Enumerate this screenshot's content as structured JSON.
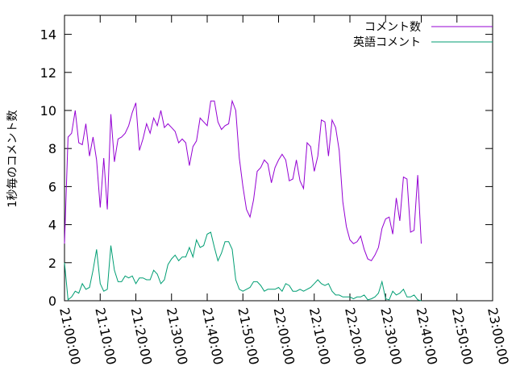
{
  "chart_data": {
    "type": "line",
    "ylabel": "1秒毎のコメント数",
    "xlabel": "",
    "ylim": [
      0,
      15
    ],
    "yticks": [
      0,
      2,
      4,
      6,
      8,
      10,
      12,
      14
    ],
    "xlim": [
      "21:00:00",
      "23:00:00"
    ],
    "xticks": [
      "21:00:00",
      "21:10:00",
      "21:20:00",
      "21:30:00",
      "21:40:00",
      "21:50:00",
      "22:00:00",
      "22:10:00",
      "22:20:00",
      "22:30:00",
      "22:40:00",
      "22:50:00",
      "23:00:00"
    ],
    "grid": false,
    "legend_position": "top-right",
    "x_interval_minutes": 1,
    "series": [
      {
        "name": "コメント数",
        "color": "#9400d3",
        "values": [
          3.0,
          8.6,
          8.8,
          10.0,
          8.3,
          8.2,
          9.3,
          7.6,
          8.6,
          7.4,
          4.9,
          7.5,
          4.8,
          9.8,
          7.3,
          8.5,
          8.6,
          8.8,
          9.2,
          9.9,
          10.4,
          7.9,
          8.5,
          9.3,
          8.8,
          9.6,
          9.2,
          10.0,
          9.1,
          9.3,
          9.1,
          8.9,
          8.3,
          8.5,
          8.3,
          7.1,
          8.1,
          8.4,
          9.6,
          9.4,
          9.2,
          10.5,
          10.5,
          9.4,
          9.0,
          9.2,
          9.3,
          10.5,
          10.0,
          7.5,
          6.0,
          4.8,
          4.4,
          5.3,
          6.8,
          7.0,
          7.4,
          7.2,
          6.2,
          7.0,
          7.4,
          7.7,
          7.4,
          6.3,
          6.4,
          7.4,
          6.3,
          5.9,
          8.3,
          8.1,
          6.8,
          7.6,
          9.5,
          9.4,
          7.6,
          9.5,
          9.1,
          7.9,
          5.2,
          3.9,
          3.2,
          3.0,
          3.1,
          3.4,
          2.7,
          2.2,
          2.1,
          2.4,
          2.8,
          3.8,
          4.3,
          4.4,
          3.5,
          5.4,
          4.2,
          6.5,
          6.4,
          3.6,
          3.7,
          6.6,
          3.0
        ]
      },
      {
        "name": "英語コメント",
        "color": "#009e73",
        "values": [
          2.0,
          0.05,
          0.2,
          0.5,
          0.4,
          0.9,
          0.6,
          0.7,
          1.6,
          2.7,
          0.9,
          0.5,
          0.6,
          2.9,
          1.6,
          1.0,
          1.0,
          1.3,
          1.2,
          1.3,
          0.9,
          1.2,
          1.2,
          1.1,
          1.1,
          1.6,
          1.4,
          0.9,
          1.1,
          1.9,
          2.2,
          2.4,
          2.1,
          2.3,
          2.3,
          2.8,
          2.3,
          3.2,
          2.8,
          2.9,
          3.5,
          3.6,
          2.8,
          2.1,
          2.5,
          3.1,
          3.1,
          2.7,
          1.1,
          0.6,
          0.5,
          0.6,
          0.7,
          1.0,
          1.0,
          0.8,
          0.5,
          0.6,
          0.6,
          0.6,
          0.7,
          0.5,
          0.9,
          0.8,
          0.5,
          0.5,
          0.6,
          0.5,
          0.6,
          0.7,
          0.9,
          1.1,
          0.9,
          0.8,
          0.9,
          0.5,
          0.3,
          0.3,
          0.2,
          0.2,
          0.2,
          0.1,
          0.2,
          0.2,
          0.3,
          0.05,
          0.1,
          0.2,
          0.4,
          1.0,
          0.1,
          0.05,
          0.5,
          0.3,
          0.4,
          0.6,
          0.2,
          0.2,
          0.3,
          0.05,
          0.0
        ]
      }
    ]
  }
}
